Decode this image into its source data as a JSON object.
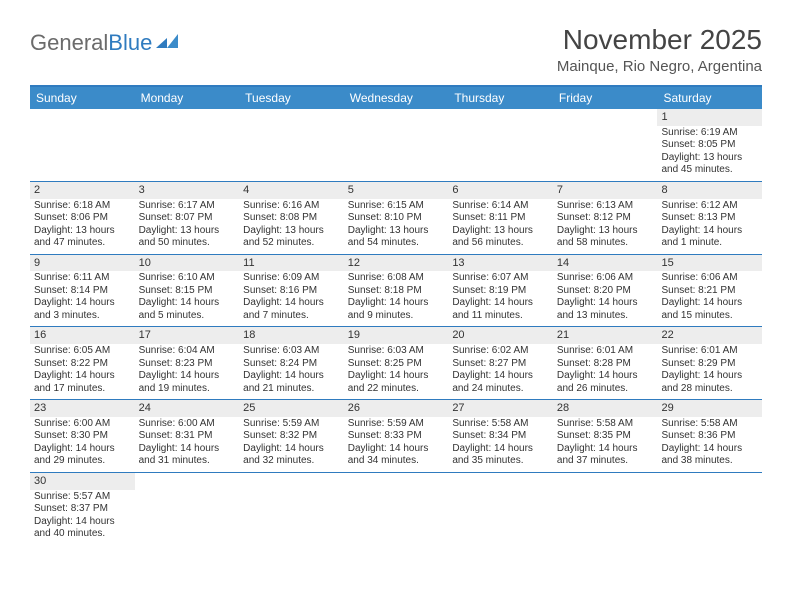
{
  "logo": {
    "text1": "General",
    "text2": "Blue"
  },
  "title": "November 2025",
  "subtitle": "Mainque, Rio Negro, Argentina",
  "colors": {
    "header_bg": "#3b8bc9",
    "header_border_top": "#2f7bbf",
    "row_border": "#2f7bbf",
    "shaded_bg": "#ededed",
    "page_bg": "#ffffff",
    "title_color": "#444444",
    "text_color": "#333333",
    "logo_gray": "#6b6b6b",
    "logo_blue": "#2f7bbf"
  },
  "day_names": [
    "Sunday",
    "Monday",
    "Tuesday",
    "Wednesday",
    "Thursday",
    "Friday",
    "Saturday"
  ],
  "weeks": [
    [
      {
        "empty": true
      },
      {
        "empty": true
      },
      {
        "empty": true
      },
      {
        "empty": true
      },
      {
        "empty": true
      },
      {
        "empty": true
      },
      {
        "day": 1,
        "sunrise": "6:19 AM",
        "sunset": "8:05 PM",
        "daylight": "13 hours and 45 minutes."
      }
    ],
    [
      {
        "day": 2,
        "sunrise": "6:18 AM",
        "sunset": "8:06 PM",
        "daylight": "13 hours and 47 minutes."
      },
      {
        "day": 3,
        "sunrise": "6:17 AM",
        "sunset": "8:07 PM",
        "daylight": "13 hours and 50 minutes."
      },
      {
        "day": 4,
        "sunrise": "6:16 AM",
        "sunset": "8:08 PM",
        "daylight": "13 hours and 52 minutes."
      },
      {
        "day": 5,
        "sunrise": "6:15 AM",
        "sunset": "8:10 PM",
        "daylight": "13 hours and 54 minutes."
      },
      {
        "day": 6,
        "sunrise": "6:14 AM",
        "sunset": "8:11 PM",
        "daylight": "13 hours and 56 minutes."
      },
      {
        "day": 7,
        "sunrise": "6:13 AM",
        "sunset": "8:12 PM",
        "daylight": "13 hours and 58 minutes."
      },
      {
        "day": 8,
        "sunrise": "6:12 AM",
        "sunset": "8:13 PM",
        "daylight": "14 hours and 1 minute."
      }
    ],
    [
      {
        "day": 9,
        "sunrise": "6:11 AM",
        "sunset": "8:14 PM",
        "daylight": "14 hours and 3 minutes."
      },
      {
        "day": 10,
        "sunrise": "6:10 AM",
        "sunset": "8:15 PM",
        "daylight": "14 hours and 5 minutes."
      },
      {
        "day": 11,
        "sunrise": "6:09 AM",
        "sunset": "8:16 PM",
        "daylight": "14 hours and 7 minutes."
      },
      {
        "day": 12,
        "sunrise": "6:08 AM",
        "sunset": "8:18 PM",
        "daylight": "14 hours and 9 minutes."
      },
      {
        "day": 13,
        "sunrise": "6:07 AM",
        "sunset": "8:19 PM",
        "daylight": "14 hours and 11 minutes."
      },
      {
        "day": 14,
        "sunrise": "6:06 AM",
        "sunset": "8:20 PM",
        "daylight": "14 hours and 13 minutes."
      },
      {
        "day": 15,
        "sunrise": "6:06 AM",
        "sunset": "8:21 PM",
        "daylight": "14 hours and 15 minutes."
      }
    ],
    [
      {
        "day": 16,
        "sunrise": "6:05 AM",
        "sunset": "8:22 PM",
        "daylight": "14 hours and 17 minutes."
      },
      {
        "day": 17,
        "sunrise": "6:04 AM",
        "sunset": "8:23 PM",
        "daylight": "14 hours and 19 minutes."
      },
      {
        "day": 18,
        "sunrise": "6:03 AM",
        "sunset": "8:24 PM",
        "daylight": "14 hours and 21 minutes."
      },
      {
        "day": 19,
        "sunrise": "6:03 AM",
        "sunset": "8:25 PM",
        "daylight": "14 hours and 22 minutes."
      },
      {
        "day": 20,
        "sunrise": "6:02 AM",
        "sunset": "8:27 PM",
        "daylight": "14 hours and 24 minutes."
      },
      {
        "day": 21,
        "sunrise": "6:01 AM",
        "sunset": "8:28 PM",
        "daylight": "14 hours and 26 minutes."
      },
      {
        "day": 22,
        "sunrise": "6:01 AM",
        "sunset": "8:29 PM",
        "daylight": "14 hours and 28 minutes."
      }
    ],
    [
      {
        "day": 23,
        "sunrise": "6:00 AM",
        "sunset": "8:30 PM",
        "daylight": "14 hours and 29 minutes."
      },
      {
        "day": 24,
        "sunrise": "6:00 AM",
        "sunset": "8:31 PM",
        "daylight": "14 hours and 31 minutes."
      },
      {
        "day": 25,
        "sunrise": "5:59 AM",
        "sunset": "8:32 PM",
        "daylight": "14 hours and 32 minutes."
      },
      {
        "day": 26,
        "sunrise": "5:59 AM",
        "sunset": "8:33 PM",
        "daylight": "14 hours and 34 minutes."
      },
      {
        "day": 27,
        "sunrise": "5:58 AM",
        "sunset": "8:34 PM",
        "daylight": "14 hours and 35 minutes."
      },
      {
        "day": 28,
        "sunrise": "5:58 AM",
        "sunset": "8:35 PM",
        "daylight": "14 hours and 37 minutes."
      },
      {
        "day": 29,
        "sunrise": "5:58 AM",
        "sunset": "8:36 PM",
        "daylight": "14 hours and 38 minutes."
      }
    ],
    [
      {
        "day": 30,
        "sunrise": "5:57 AM",
        "sunset": "8:37 PM",
        "daylight": "14 hours and 40 minutes."
      },
      {
        "empty": true
      },
      {
        "empty": true
      },
      {
        "empty": true
      },
      {
        "empty": true
      },
      {
        "empty": true
      },
      {
        "empty": true
      }
    ]
  ],
  "labels": {
    "sunrise": "Sunrise: ",
    "sunset": "Sunset: ",
    "daylight": "Daylight: "
  }
}
